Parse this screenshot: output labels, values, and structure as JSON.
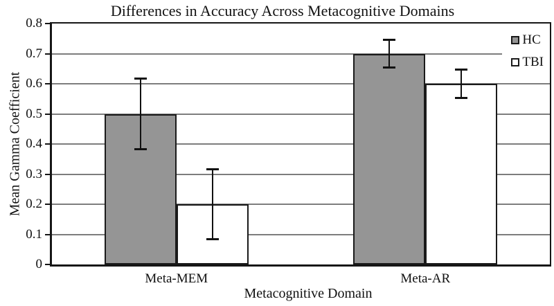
{
  "chart_data": {
    "type": "bar",
    "title": "Differences in Accuracy Across Metacognitive Domains",
    "xlabel": "Metacognitive Domain",
    "ylabel": "Mean Gamma Coefficient",
    "categories": [
      "Meta-MEM",
      "Meta-AR"
    ],
    "series": [
      {
        "name": "HC",
        "fill": "#959595",
        "values": [
          0.5,
          0.7
        ],
        "error_low": [
          0.12,
          0.05
        ],
        "error_high": [
          0.12,
          0.05
        ]
      },
      {
        "name": "TBI",
        "fill": "#ffffff",
        "values": [
          0.2,
          0.6
        ],
        "error_low": [
          0.12,
          0.05
        ],
        "error_high": [
          0.12,
          0.05
        ]
      }
    ],
    "ylim": [
      0,
      0.8
    ],
    "ytick_step": 0.1,
    "ytick_labels": [
      "0.8",
      "0.7",
      "0.6",
      "0.5",
      "0.4",
      "0.3",
      "0.2",
      "0.1",
      "0"
    ],
    "grid": "horizontal",
    "legend_position": "top-right-inside",
    "error_bars": true,
    "colors": {
      "hc_fill": "#959595",
      "tbi_fill": "#ffffff",
      "bar_border": "#1a1a1a",
      "grid": "#7d7d7d",
      "axis": "#161616",
      "background": "#ffffff"
    }
  }
}
